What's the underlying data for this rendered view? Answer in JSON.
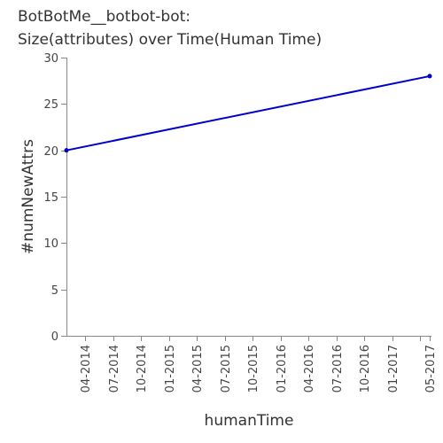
{
  "chart_data": {
    "type": "line",
    "title": [
      "BotBotMe__botbot-bot:",
      "Size(attributes) over Time(Human Time)"
    ],
    "xlabel": "humanTime",
    "ylabel": "#numNewAttrs",
    "ylim": [
      0,
      30
    ],
    "xlim": [
      "2014-02",
      "2017-05"
    ],
    "grid": false,
    "yticks": [
      0,
      5,
      10,
      15,
      20,
      25,
      30
    ],
    "xticks": [
      {
        "date": "2014-04",
        "label": "04-2014"
      },
      {
        "date": "2014-07",
        "label": "07-2014"
      },
      {
        "date": "2014-10",
        "label": "10-2014"
      },
      {
        "date": "2015-01",
        "label": "01-2015"
      },
      {
        "date": "2015-04",
        "label": "04-2015"
      },
      {
        "date": "2015-07",
        "label": "07-2015"
      },
      {
        "date": "2015-10",
        "label": "10-2015"
      },
      {
        "date": "2016-01",
        "label": "01-2016"
      },
      {
        "date": "2016-04",
        "label": "04-2016"
      },
      {
        "date": "2016-07",
        "label": "07-2016"
      },
      {
        "date": "2016-10",
        "label": "10-2016"
      },
      {
        "date": "2017-01",
        "label": "01-2017"
      },
      {
        "date": "2017-05",
        "label": "05-2017"
      }
    ],
    "minor_xticks": [
      "2017-04"
    ],
    "series": [
      {
        "color": "#0000cc",
        "points": [
          {
            "x": "2014-02",
            "y": 20
          },
          {
            "x": "2017-05",
            "y": 28
          }
        ]
      }
    ]
  }
}
